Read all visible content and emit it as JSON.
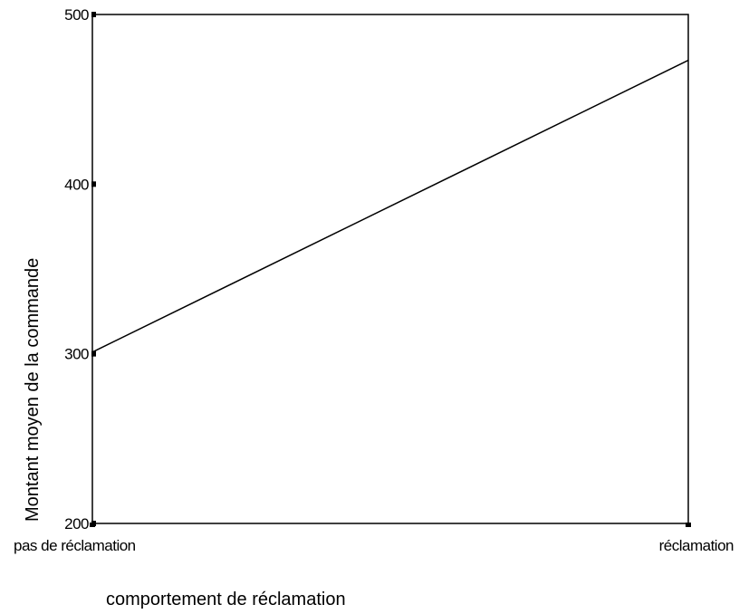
{
  "chart_data": {
    "type": "line",
    "categories": [
      "pas de réclamation",
      "réclamation"
    ],
    "series": [
      {
        "values": [
          301,
          473
        ]
      }
    ],
    "xlabel": "comportement de réclamation",
    "ylabel": "Montant moyen de la commande",
    "ylim": [
      200,
      500
    ],
    "yticks": [
      "200",
      "300",
      "400",
      "500"
    ],
    "grid": false,
    "line_color": "#000000"
  }
}
